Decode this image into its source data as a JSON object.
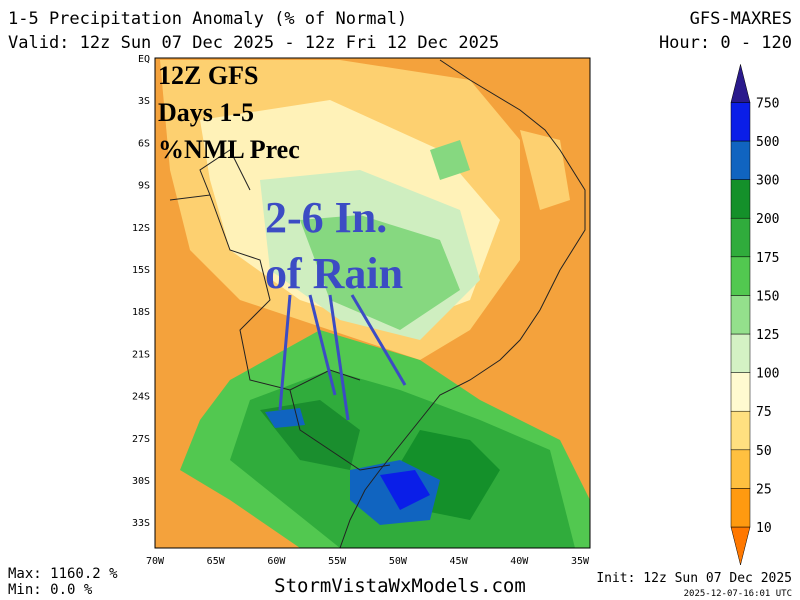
{
  "header": {
    "title": "1-5 Precipitation Anomaly (% of Normal)",
    "model": "GFS-MAXRES",
    "valid": "Valid: 12z Sun 07 Dec 2025 - 12z Fri 12 Dec 2025",
    "hour": "Hour: 0 - 120"
  },
  "map": {
    "lat_labels": [
      "EQ",
      "3S",
      "6S",
      "9S",
      "12S",
      "15S",
      "18S",
      "21S",
      "24S",
      "27S",
      "30S",
      "33S"
    ],
    "lon_labels": [
      "70W",
      "65W",
      "60W",
      "55W",
      "50W",
      "45W",
      "40W",
      "35W"
    ],
    "overlay": [
      "12Z GFS",
      "Days 1-5",
      "%NML Prec"
    ],
    "annotation": [
      "2-6 In.",
      "of Rain"
    ]
  },
  "colorbar": {
    "levels": [
      10,
      25,
      50,
      75,
      100,
      125,
      150,
      175,
      200,
      300,
      500,
      750
    ],
    "colors": [
      "#ff7800",
      "#ff9a10",
      "#ffc040",
      "#ffe080",
      "#fffad0",
      "#d4f2c4",
      "#94e08c",
      "#52c850",
      "#30ac3c",
      "#14902a",
      "#1064c0",
      "#0a1ee8",
      "#2a1a8c"
    ]
  },
  "footer": {
    "max": "Max: 1160.2 %",
    "min": "Min: 0.0 %",
    "site": "StormVistaWxModels.com",
    "init": "Init: 12z Sun 07 Dec 2025",
    "stamp": "2025-12-07-16:01 UTC"
  }
}
